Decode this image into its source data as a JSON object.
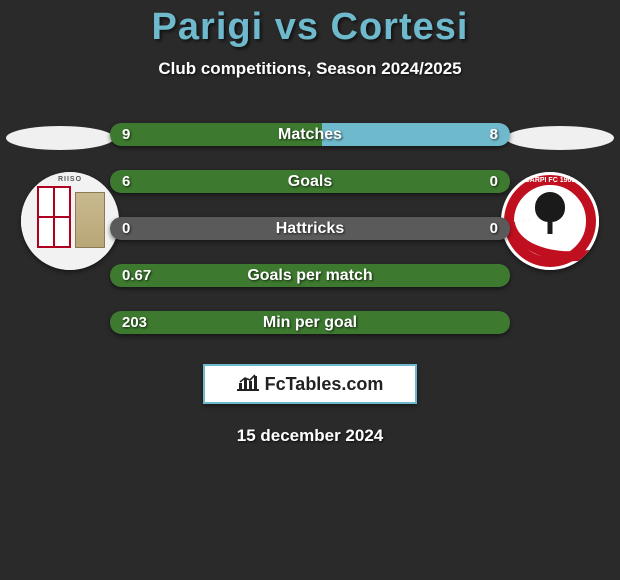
{
  "title": "Parigi vs Cortesi",
  "subtitle": "Club competitions, Season 2024/2025",
  "date": "15 december 2024",
  "brand": "FcTables.com",
  "colors": {
    "left_bar": "#3d7a2f",
    "right_bar": "#6fb9cc",
    "neutral_bar": "#5a5a5a",
    "ellipse_left": "#f0f0f0",
    "ellipse_right": "#f0f0f0",
    "title": "#6fb9cc",
    "background": "#2a2a2a"
  },
  "stats": [
    {
      "label": "Matches",
      "left_val": "9",
      "right_val": "8",
      "left_pct": 53,
      "right_pct": 47,
      "mode": "split"
    },
    {
      "label": "Goals",
      "left_val": "6",
      "right_val": "0",
      "left_pct": 100,
      "right_pct": 0,
      "mode": "split"
    },
    {
      "label": "Hattricks",
      "left_val": "0",
      "right_val": "0",
      "left_pct": 0,
      "right_pct": 0,
      "mode": "neutral"
    },
    {
      "label": "Goals per match",
      "left_val": "0.67",
      "right_val": "",
      "left_pct": 100,
      "right_pct": 0,
      "mode": "left_only"
    },
    {
      "label": "Min per goal",
      "left_val": "203",
      "right_val": "",
      "left_pct": 100,
      "right_pct": 0,
      "mode": "left_only"
    }
  ],
  "crest_left_arc": "RIISO",
  "crest_right_arc": "CARPI FC 1909"
}
